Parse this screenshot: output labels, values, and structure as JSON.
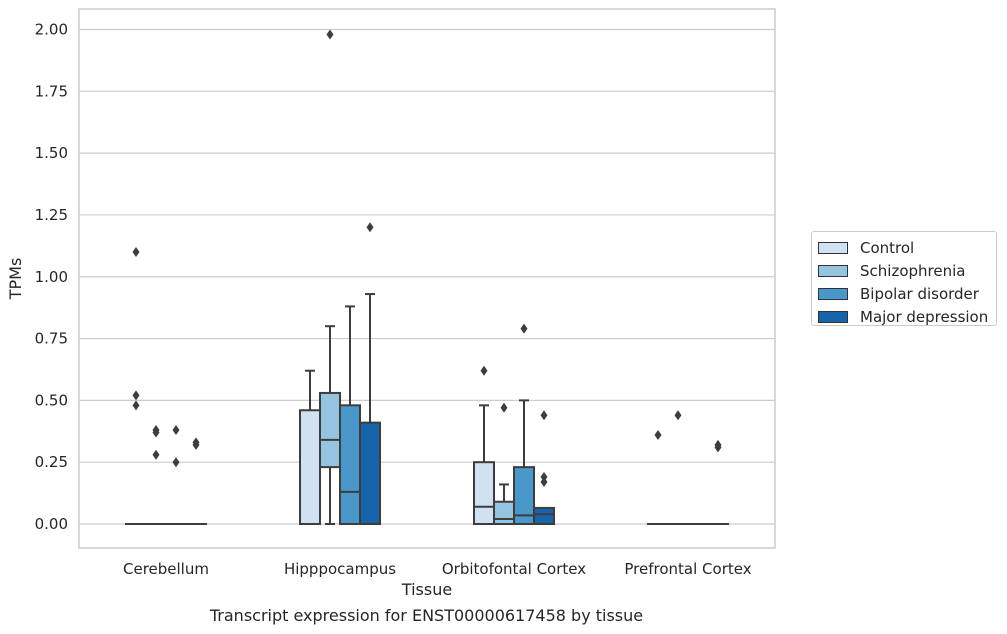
{
  "caption": "Transcript expression for ENST00000617458 by tissue",
  "chart_data": {
    "type": "boxplot",
    "xlabel": "Tissue",
    "ylabel": "TPMs",
    "ylim": [
      -0.1,
      2.08
    ],
    "yticks": [
      "0.00",
      "0.25",
      "0.50",
      "0.75",
      "1.00",
      "1.25",
      "1.50",
      "1.75",
      "2.00"
    ],
    "grid": "horizontal",
    "legend_position": "right",
    "categories": [
      "Cerebellum",
      "Hipppocampus",
      "Orbitofontal Cortex",
      "Prefrontal Cortex"
    ],
    "series": [
      {
        "name": "Control",
        "color": "#d0e1f2",
        "boxes": [
          {
            "q1": 0,
            "median": 0,
            "q3": 0,
            "whisker_low": 0,
            "whisker_high": 0,
            "outliers": [
              1.1,
              0.52,
              0.48
            ]
          },
          {
            "q1": 0,
            "median": 0,
            "q3": 0.46,
            "whisker_low": 0,
            "whisker_high": 0.62,
            "outliers": []
          },
          {
            "q1": 0,
            "median": 0.07,
            "q3": 0.25,
            "whisker_low": 0,
            "whisker_high": 0.48,
            "outliers": [
              0.62
            ]
          },
          {
            "q1": 0,
            "median": 0,
            "q3": 0,
            "whisker_low": 0,
            "whisker_high": 0,
            "outliers": [
              0.36
            ]
          }
        ]
      },
      {
        "name": "Schizophrenia",
        "color": "#94c4df",
        "boxes": [
          {
            "q1": 0,
            "median": 0,
            "q3": 0,
            "whisker_low": 0,
            "whisker_high": 0,
            "outliers": [
              0.38,
              0.37,
              0.28
            ]
          },
          {
            "q1": 0.23,
            "median": 0.34,
            "q3": 0.53,
            "whisker_low": 0,
            "whisker_high": 0.8,
            "outliers": [
              1.98
            ]
          },
          {
            "q1": 0,
            "median": 0.02,
            "q3": 0.09,
            "whisker_low": 0,
            "whisker_high": 0.16,
            "outliers": [
              0.47
            ]
          },
          {
            "q1": 0,
            "median": 0,
            "q3": 0,
            "whisker_low": 0,
            "whisker_high": 0,
            "outliers": [
              0.44
            ]
          }
        ]
      },
      {
        "name": "Bipolar disorder",
        "color": "#4a98c9",
        "boxes": [
          {
            "q1": 0,
            "median": 0,
            "q3": 0,
            "whisker_low": 0,
            "whisker_high": 0,
            "outliers": [
              0.38,
              0.25
            ]
          },
          {
            "q1": 0,
            "median": 0.13,
            "q3": 0.48,
            "whisker_low": 0,
            "whisker_high": 0.88,
            "outliers": []
          },
          {
            "q1": 0,
            "median": 0.035,
            "q3": 0.23,
            "whisker_low": 0,
            "whisker_high": 0.5,
            "outliers": [
              0.79
            ]
          },
          {
            "q1": 0,
            "median": 0,
            "q3": 0,
            "whisker_low": 0,
            "whisker_high": 0,
            "outliers": []
          }
        ]
      },
      {
        "name": "Major depression",
        "color": "#1764ab",
        "boxes": [
          {
            "q1": 0,
            "median": 0,
            "q3": 0,
            "whisker_low": 0,
            "whisker_high": 0,
            "outliers": [
              0.33,
              0.32
            ]
          },
          {
            "q1": 0,
            "median": 0,
            "q3": 0.41,
            "whisker_low": 0,
            "whisker_high": 0.93,
            "outliers": [
              1.2
            ]
          },
          {
            "q1": 0,
            "median": 0.04,
            "q3": 0.065,
            "whisker_low": 0,
            "whisker_high": 0.065,
            "outliers": [
              0.44,
              0.19,
              0.17
            ]
          },
          {
            "q1": 0,
            "median": 0,
            "q3": 0,
            "whisker_low": 0,
            "whisker_high": 0,
            "outliers": [
              0.32,
              0.31
            ]
          }
        ]
      }
    ]
  }
}
